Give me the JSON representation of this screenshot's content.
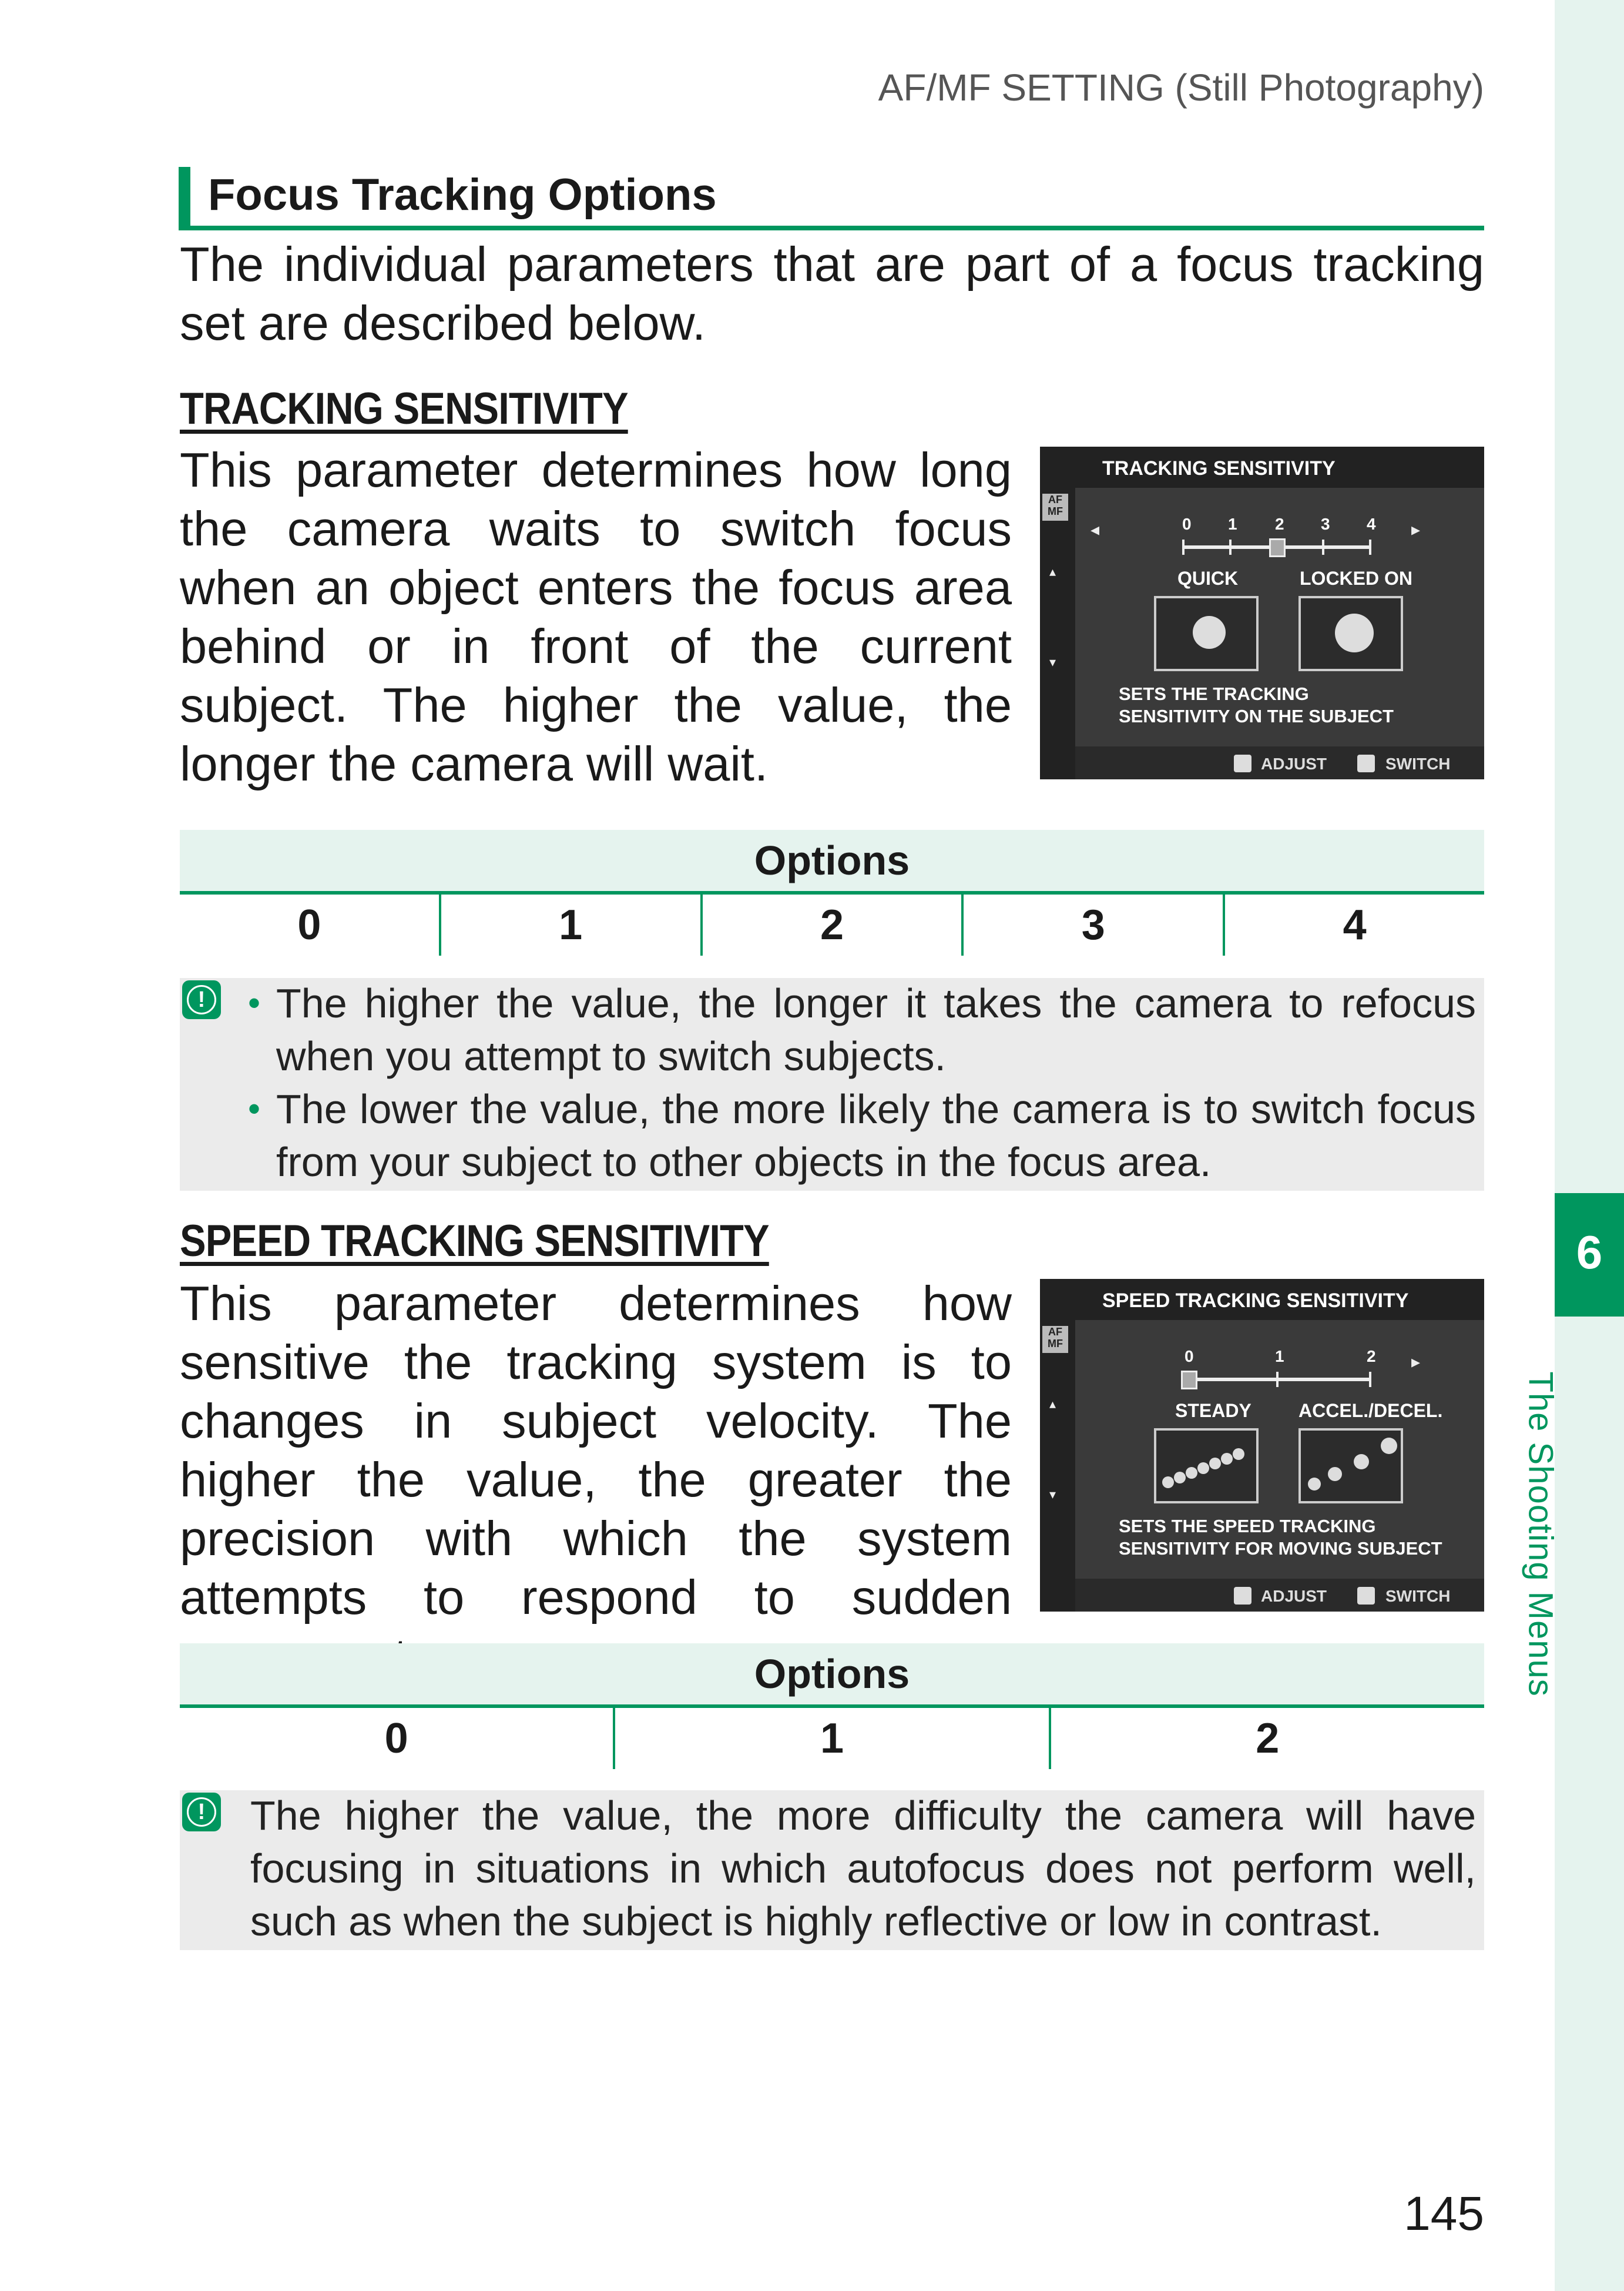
{
  "header": {
    "running_title": "AF/MF SETTING (Still Photography)"
  },
  "side_tab": {
    "chapter_number": "6",
    "chapter_title": "The Shooting Menus"
  },
  "section": {
    "title": "Focus Tracking Options",
    "intro": "The individual parameters that are part of a focus tracking set are described below."
  },
  "tracking": {
    "heading": "TRACKING SENSITIVITY",
    "body": "This parameter determines how long the camera waits to switch focus when an object enters the focus area behind or in front of the current subject. The higher the value, the longer the camera will wait.",
    "screen": {
      "title": "TRACKING SENSITIVITY",
      "afmf": "AF MF",
      "scale": [
        "0",
        "1",
        "2",
        "3",
        "4"
      ],
      "selected_index": 2,
      "label_left": "QUICK",
      "label_right": "LOCKED ON",
      "desc_line1": "SETS THE TRACKING",
      "desc_line2": "SENSITIVITY ON THE SUBJECT",
      "btn_adjust": "ADJUST",
      "btn_switch": "SWITCH"
    },
    "options_header": "Options",
    "options": [
      "0",
      "1",
      "2",
      "3",
      "4"
    ],
    "notes": [
      "The higher the value, the longer it takes the camera to refocus when you attempt to switch subjects.",
      "The lower the value, the more likely the camera is to switch focus from your subject to other objects in the focus area."
    ]
  },
  "speed": {
    "heading": "SPEED TRACKING SENSITIVITY",
    "body": "This parameter determines how sensitive the tracking system is to changes in subject velocity. The higher the value, the greater the precision with which the system attempts to respond to sudden movement.",
    "screen": {
      "title": "SPEED TRACKING SENSITIVITY",
      "afmf": "AF MF",
      "scale": [
        "0",
        "1",
        "2"
      ],
      "selected_index": 0,
      "label_left": "STEADY",
      "label_right": "ACCEL./DECEL.",
      "desc_line1": "SETS THE SPEED TRACKING",
      "desc_line2": "SENSITIVITY FOR MOVING SUBJECT",
      "btn_adjust": "ADJUST",
      "btn_switch": "SWITCH"
    },
    "options_header": "Options",
    "options": [
      "0",
      "1",
      "2"
    ],
    "note": "The higher the value, the more difficulty the camera will have focusing in situations in which autofocus does not perform well, such as when the subject is highly reflective or low in contrast."
  },
  "page_number": "145",
  "colors": {
    "accent": "#00965e",
    "tint": "#e5f3ee",
    "note_bg": "#ebebeb"
  }
}
